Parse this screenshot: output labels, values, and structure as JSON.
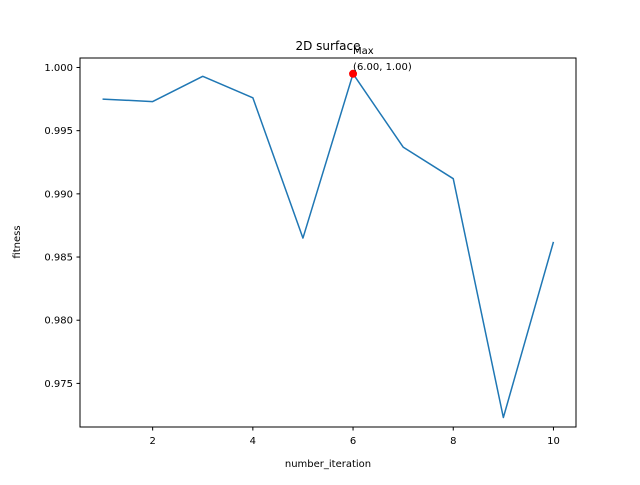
{
  "chart_data": {
    "type": "line",
    "title": "2D surface",
    "xlabel": "number_iteration",
    "ylabel": "fitness",
    "xlim": [
      0.55,
      10.45
    ],
    "ylim": [
      0.97155,
      1.00075
    ],
    "xticks": [
      2,
      4,
      6,
      8,
      10
    ],
    "xtick_labels": [
      "2",
      "4",
      "6",
      "8",
      "10"
    ],
    "yticks": [
      0.975,
      0.98,
      0.985,
      0.99,
      0.995,
      1.0
    ],
    "ytick_labels": [
      "0.975",
      "0.980",
      "0.985",
      "0.990",
      "0.995",
      "1.000"
    ],
    "grid": false,
    "series": [
      {
        "color": "#1f77b4",
        "x": [
          1,
          2,
          3,
          4,
          5,
          6,
          7,
          8,
          9,
          10
        ],
        "y": [
          0.9975,
          0.9973,
          0.9993,
          0.9976,
          0.9865,
          0.9995,
          0.9937,
          0.9912,
          0.9723,
          0.9862
        ]
      }
    ],
    "annotation": {
      "x": 6,
      "y": 0.9995,
      "line1": "Max",
      "line2": "(6.00, 1.00)",
      "color": "#ff0000"
    }
  }
}
